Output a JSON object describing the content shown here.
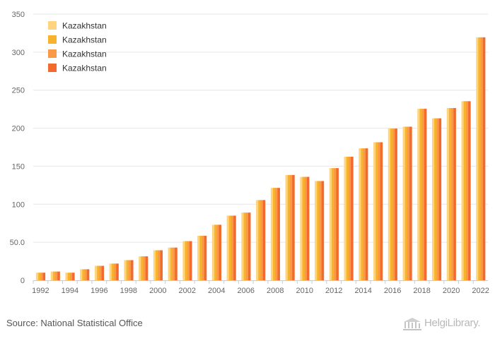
{
  "chart_data": {
    "type": "bar",
    "categories": [
      "1992",
      "1993",
      "1994",
      "1995",
      "1996",
      "1997",
      "1998",
      "1999",
      "2000",
      "2001",
      "2002",
      "2003",
      "2004",
      "2005",
      "2006",
      "2007",
      "2008",
      "2009",
      "2010",
      "2011",
      "2012",
      "2013",
      "2014",
      "2015",
      "2016",
      "2017",
      "2018",
      "2019",
      "2020",
      "2021",
      "2022"
    ],
    "x_tick_labels": [
      "1992",
      "1994",
      "1996",
      "1998",
      "2000",
      "2002",
      "2004",
      "2006",
      "2008",
      "2010",
      "2012",
      "2014",
      "2016",
      "2018",
      "2020",
      "2022"
    ],
    "y_ticks": [
      0,
      50,
      100,
      150,
      200,
      250,
      300,
      350
    ],
    "y_tick_labels": [
      "0",
      "50.0",
      "100",
      "150",
      "200",
      "250",
      "300",
      "350"
    ],
    "ylim": [
      0,
      350
    ],
    "grid": true,
    "legend_position": "top-left",
    "title": "",
    "xlabel": "",
    "ylabel": "",
    "series": [
      {
        "name": "Kazakhstan",
        "color": "#ffd480",
        "values": [
          10,
          11.5,
          10,
          14.5,
          19,
          22,
          26.5,
          31.5,
          39.5,
          43,
          51.5,
          58.5,
          73,
          85,
          89,
          105.5,
          121.5,
          138.5,
          136,
          130.5,
          147.5,
          162.5,
          173.5,
          181.5,
          199.5,
          202,
          225.5,
          213,
          226.5,
          235.5,
          319.5
        ]
      },
      {
        "name": "Kazakhstan",
        "color": "#f7b32b",
        "values": [
          10,
          11.5,
          10,
          14.5,
          19,
          22,
          26.5,
          31.5,
          39.5,
          43,
          51.5,
          58.5,
          73,
          85,
          89,
          105.5,
          121.5,
          138.5,
          136,
          130.5,
          147.5,
          162.5,
          173.5,
          181.5,
          199.5,
          202,
          225.5,
          213,
          226.5,
          235.5,
          319.5
        ]
      },
      {
        "name": "Kazakhstan",
        "color": "#fb9a46",
        "values": [
          10,
          11.5,
          10,
          14.5,
          19,
          22,
          26.5,
          31.5,
          39.5,
          43,
          51.5,
          58.5,
          73,
          85,
          89,
          105.5,
          121.5,
          138.5,
          136,
          130.5,
          147.5,
          162.5,
          173.5,
          181.5,
          199.5,
          202,
          225.5,
          213,
          226.5,
          235.5,
          319.5
        ]
      },
      {
        "name": "Kazakhstan",
        "color": "#f26a2e",
        "values": [
          10,
          11.5,
          10,
          14.5,
          19,
          22,
          26.5,
          31.5,
          39.5,
          43,
          51.5,
          58.5,
          73,
          85,
          89,
          105.5,
          121.5,
          138.5,
          136,
          130.5,
          147.5,
          162.5,
          173.5,
          181.5,
          199.5,
          202,
          225.5,
          213,
          226.5,
          235.5,
          319.5
        ]
      }
    ]
  },
  "footer": {
    "source": "Source: National Statistical Office",
    "brand": "HelgiLibrary."
  },
  "icons": {
    "brand_icon": "helgi-library-logo-icon"
  }
}
